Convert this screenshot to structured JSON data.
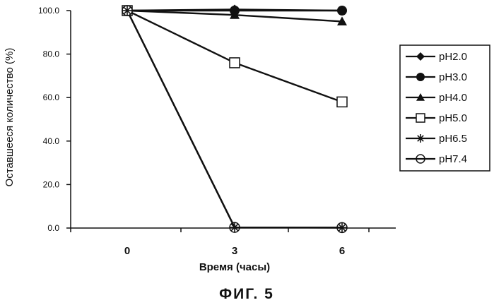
{
  "chart_data": {
    "type": "line",
    "x": [
      0,
      3,
      6
    ],
    "x_tick_labels": [
      "0",
      "3",
      "6"
    ],
    "xlabel": "Время (часы)",
    "ylabel": "Оставшееся количество (%)",
    "ylim": [
      0,
      100
    ],
    "y_ticks": [
      0,
      20,
      40,
      60,
      80,
      100
    ],
    "y_tick_labels": [
      "0.0",
      "20.0",
      "40.0",
      "60.0",
      "80.0",
      "100.0"
    ],
    "grid": false,
    "legend_position": "right",
    "series": [
      {
        "name": "pH2.0",
        "marker": "diamond-filled",
        "values": [
          100,
          100.5,
          100
        ]
      },
      {
        "name": "pH3.0",
        "marker": "circle-filled",
        "values": [
          100,
          100,
          100
        ]
      },
      {
        "name": "pH4.0",
        "marker": "triangle-filled",
        "values": [
          100,
          98,
          95
        ]
      },
      {
        "name": "pH5.0",
        "marker": "square-open",
        "values": [
          100,
          76,
          58
        ]
      },
      {
        "name": "pH6.5",
        "marker": "asterisk",
        "values": [
          100,
          0.3,
          0.2
        ]
      },
      {
        "name": "pH7.4",
        "marker": "circle-open",
        "values": [
          100,
          0.3,
          0.2
        ]
      }
    ],
    "line_color": "#111111"
  },
  "caption": "ФИГ. 5"
}
